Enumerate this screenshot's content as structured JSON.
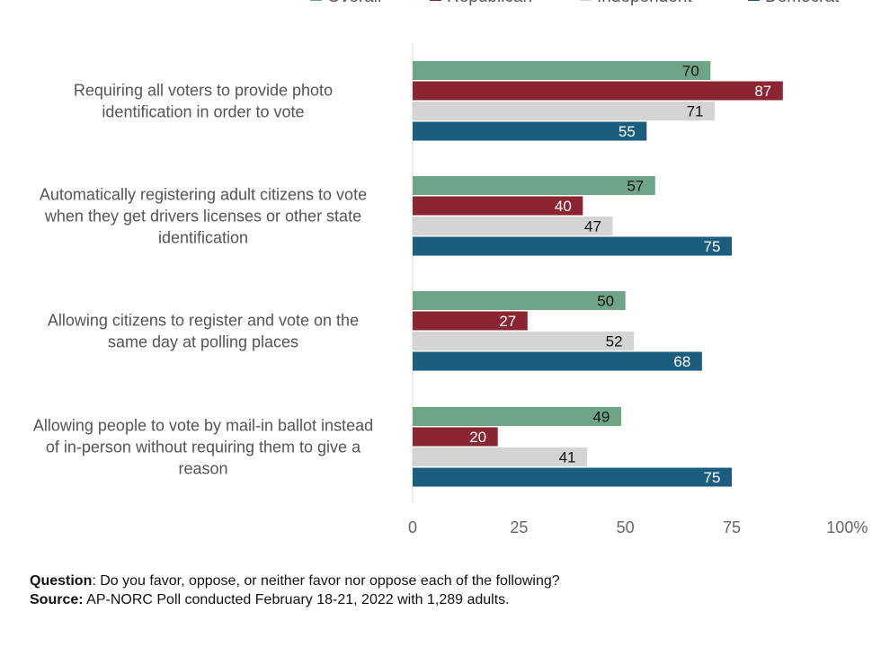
{
  "legend": [
    {
      "name": "Overall",
      "color": "#6fa587"
    },
    {
      "name": "Republican",
      "color": "#8b2532"
    },
    {
      "name": "Independent",
      "color": "#d4d4d4"
    },
    {
      "name": "Democrat",
      "color": "#1a5d7e"
    }
  ],
  "chart_data": {
    "type": "bar",
    "orientation": "horizontal",
    "categories": [
      [
        "Requiring all voters to provide photo",
        "identification in order to vote"
      ],
      [
        "Automatically registering adult citizens to vote",
        "when they get drivers licenses or other state",
        "identification"
      ],
      [
        "Allowing citizens to register and vote on the",
        "same day at polling places"
      ],
      [
        "Allowing people to vote by mail-in ballot instead",
        "of in-person without requiring them to give a",
        "reason"
      ]
    ],
    "series": [
      {
        "name": "Overall",
        "color": "#6fa587",
        "label_color": "#111111",
        "values": [
          70,
          57,
          50,
          49
        ]
      },
      {
        "name": "Republican",
        "color": "#8b2532",
        "label_color": "#ffffff",
        "values": [
          87,
          40,
          27,
          20
        ]
      },
      {
        "name": "Independent",
        "color": "#d4d4d4",
        "label_color": "#111111",
        "values": [
          71,
          47,
          52,
          41
        ]
      },
      {
        "name": "Democrat",
        "color": "#1a5d7e",
        "label_color": "#ffffff",
        "values": [
          55,
          75,
          68,
          75
        ]
      }
    ],
    "xlim": [
      0,
      100
    ],
    "xticks": [
      "0",
      "25",
      "50",
      "75",
      "100%"
    ],
    "grid": false,
    "legend_position": "top"
  },
  "footer": {
    "question_label": "Question",
    "question_text": ": Do you favor, oppose, or neither favor nor oppose each of the following?",
    "source_label": "Source:",
    "source_text": " AP-NORC Poll conducted February 18-21, 2022 with 1,289 adults."
  }
}
